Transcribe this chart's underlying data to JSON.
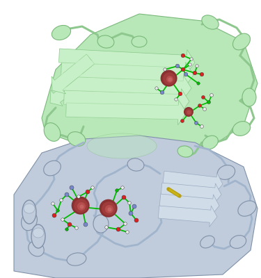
{
  "figsize": [
    3.75,
    4.0
  ],
  "dpi": 100,
  "background_color": "#ffffff",
  "green_domain_color": "#b8e8b8",
  "green_domain_edge": "#7ab87a",
  "blue_domain_color": "#c0ccdc",
  "blue_domain_edge": "#8090a8",
  "green_ribbon_light": "#c8f0c8",
  "green_ribbon_dark": "#88c888",
  "green_ribbon_shadow": "#78b078",
  "blue_ribbon_light": "#d0dce8",
  "blue_ribbon_dark": "#9aaac0",
  "maroon": "#8b3030",
  "maroon_dark": "#5a1010",
  "maroon_highlight": "#cc6060",
  "stick_green": "#00bb00",
  "stick_green2": "#22cc22",
  "atom_red": "#dd2020",
  "atom_blue": "#7788cc",
  "atom_white": "#e8e8e8",
  "atom_grey": "#cccccc",
  "yellow_s": "#b8a010",
  "coil_green": "#8ec88e",
  "coil_blue": "#a0b4cc"
}
